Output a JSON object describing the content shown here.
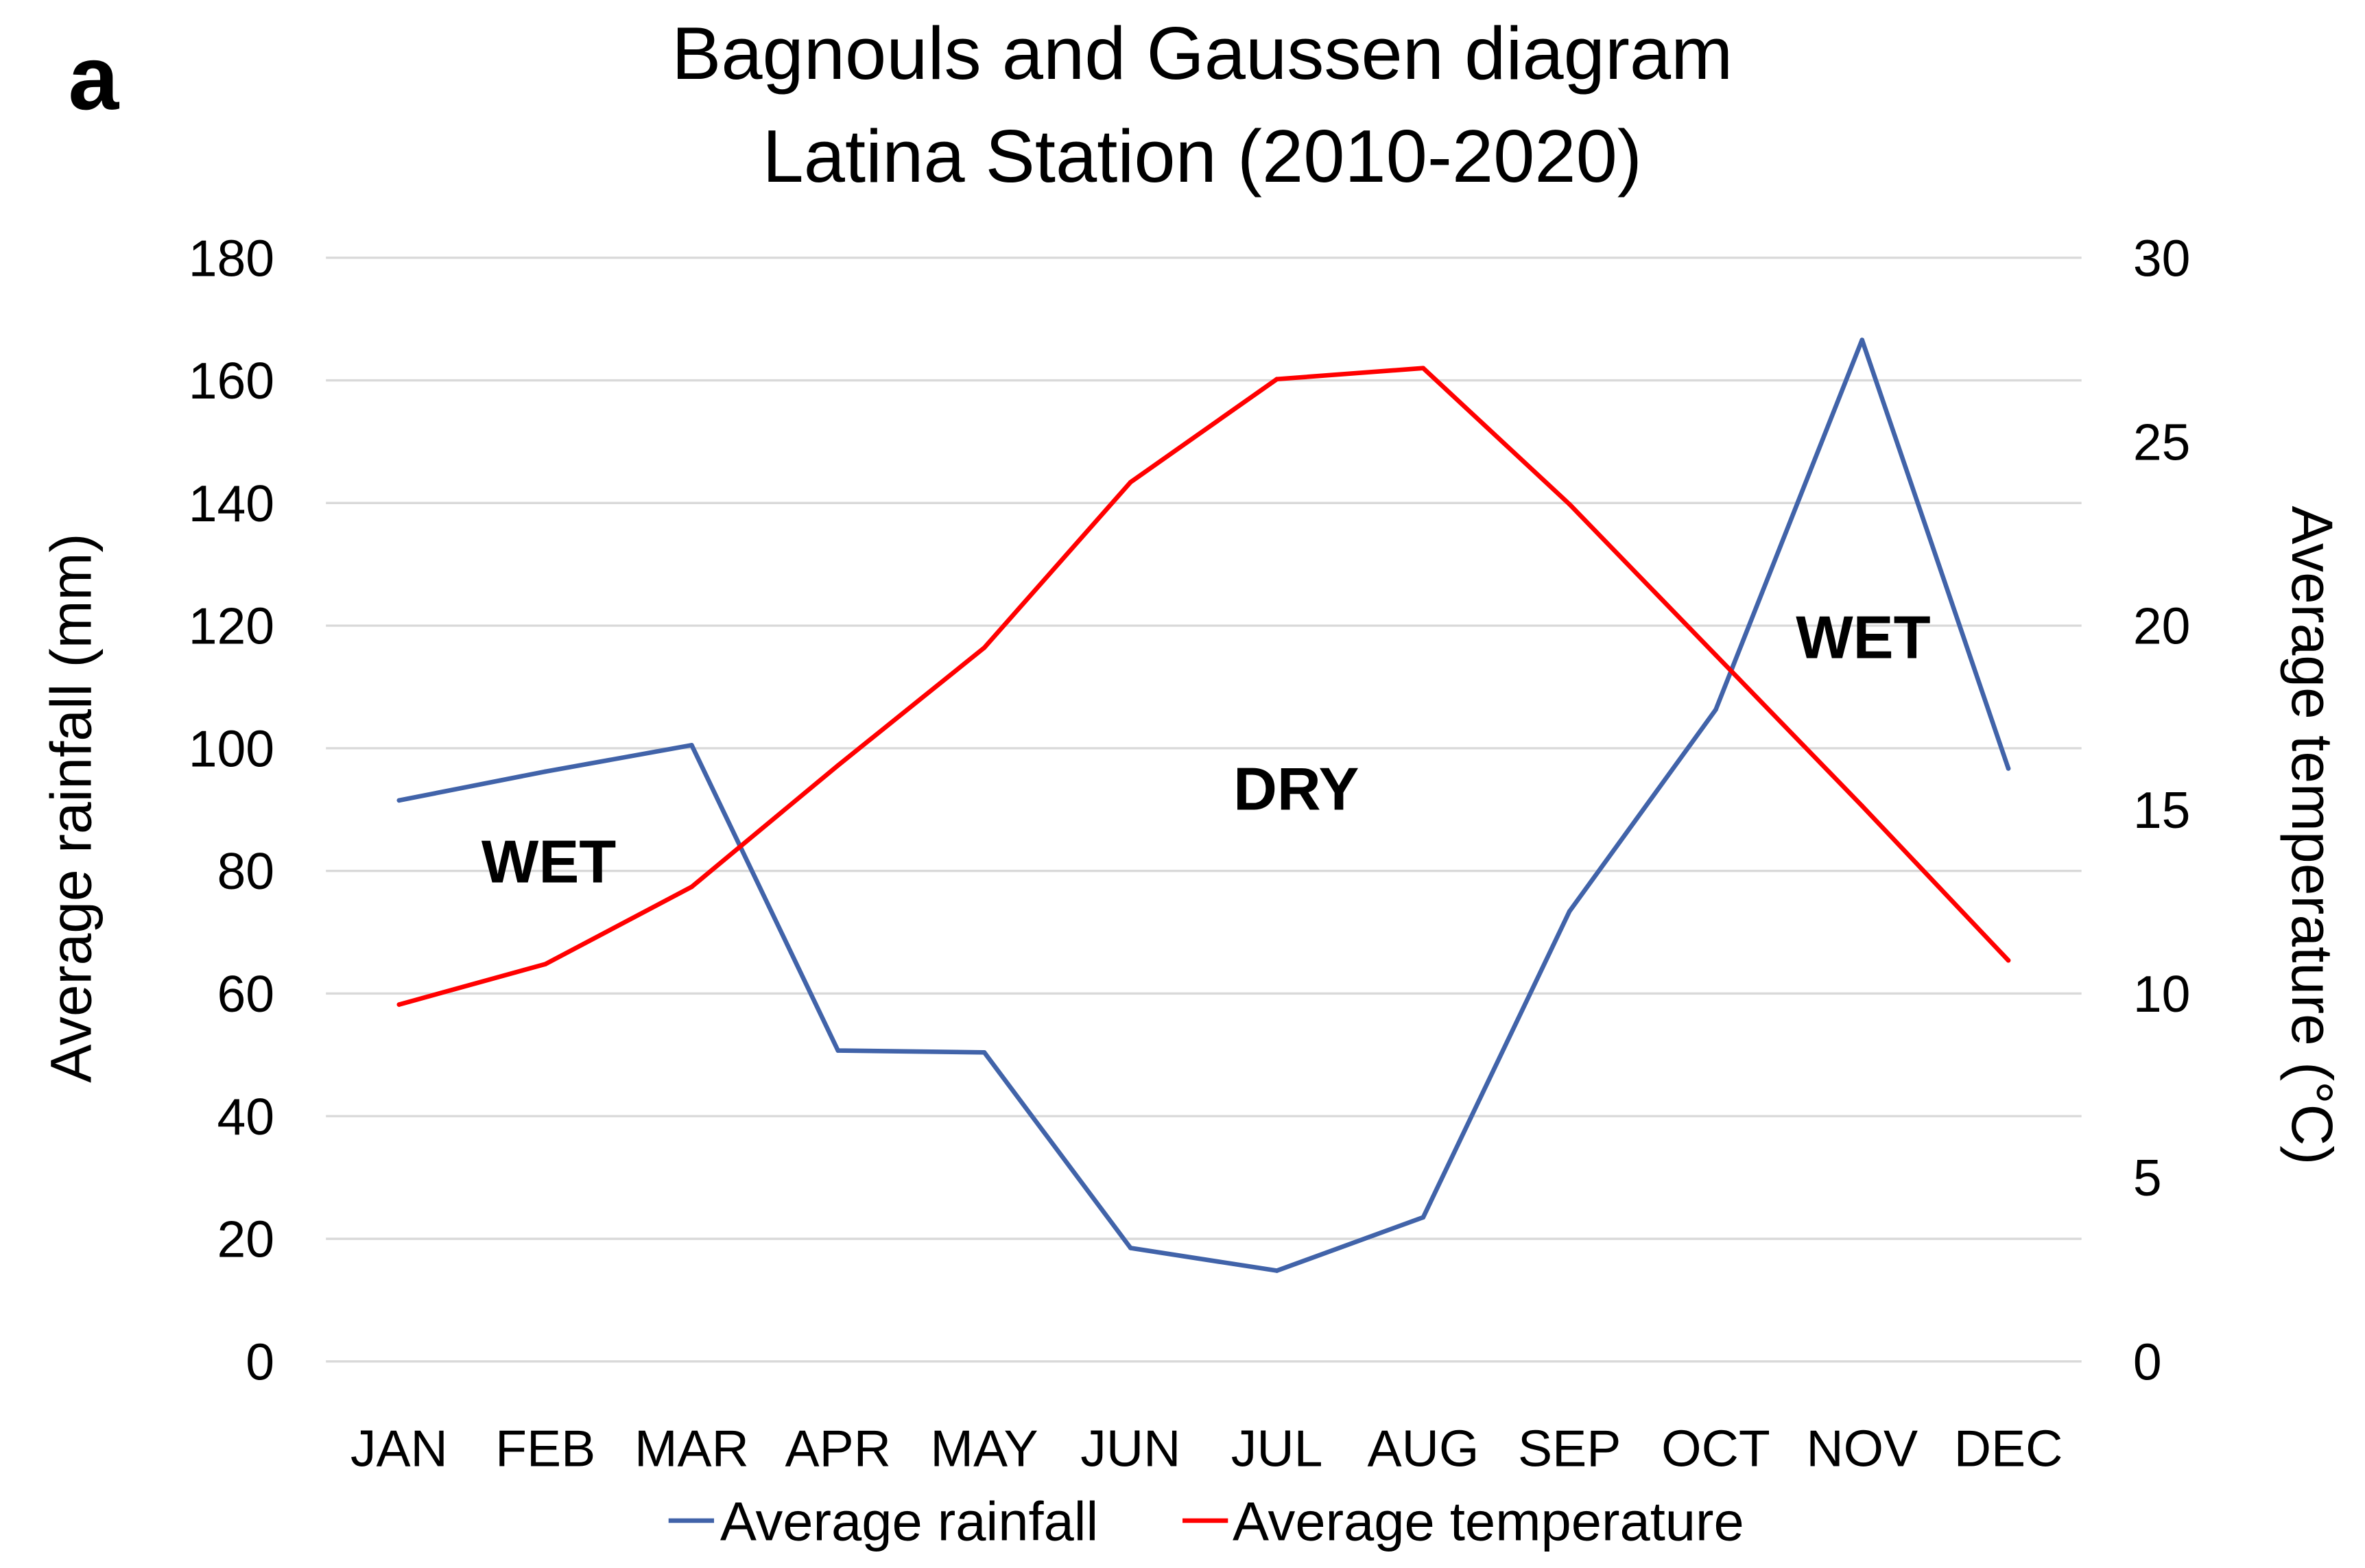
{
  "panel_label": "a",
  "chart_data": {
    "type": "line",
    "title": "Bagnouls and Gaussen diagram",
    "subtitle": "Latina Station (2010-2020)",
    "ylabel": "Average rainfall (mm)",
    "y2label": "Average temperature (°C)",
    "categories": [
      "JAN",
      "FEB",
      "MAR",
      "APR",
      "MAY",
      "JUN",
      "JUL",
      "AUG",
      "SEP",
      "OCT",
      "NOV",
      "DEC"
    ],
    "ylim": [
      0,
      180
    ],
    "y2lim": [
      0,
      30
    ],
    "y_ticks": [
      0,
      20,
      40,
      60,
      80,
      100,
      120,
      140,
      160,
      180
    ],
    "y2_ticks": [
      0,
      5,
      10,
      15,
      20,
      25,
      30
    ],
    "grid": true,
    "legend": "bottom",
    "series": [
      {
        "name": "Average rainfall",
        "axis": "left",
        "color": "#4163A9",
        "values": [
          91.5,
          96.2,
          100.5,
          50.7,
          50.4,
          18.5,
          14.8,
          23.5,
          73.4,
          106.3,
          166.6,
          96.7
        ]
      },
      {
        "name": "Average temperature",
        "axis": "right",
        "color": "#FF0000",
        "values": [
          9.7,
          10.8,
          12.9,
          16.2,
          19.4,
          23.9,
          26.7,
          27.0,
          23.3,
          19.2,
          15.1,
          10.9
        ]
      }
    ],
    "annotations": [
      "WET",
      "DRY",
      "WET"
    ]
  }
}
